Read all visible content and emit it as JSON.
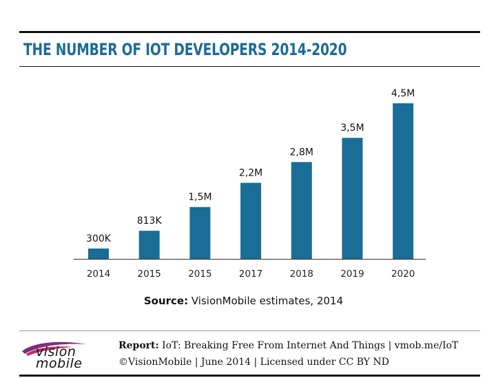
{
  "title": "THE NUMBER OF IOT DEVELOPERS 2014-2020",
  "source": {
    "label": "Source:",
    "text": "VisionMobile estimates, 2014"
  },
  "footer": {
    "report_label": "Report:",
    "report_text": "IoT: Breaking Free From Internet And Things | vmob.me/IoT",
    "copyright": "©VisionMobile | June 2014 | Licensed under CC BY ND",
    "logo_line1": "vision",
    "logo_line2": "mobile"
  },
  "colors": {
    "bar": "#1a6d96",
    "title": "#1c6c96"
  },
  "chart_data": {
    "type": "bar",
    "categories": [
      "2014",
      "2015",
      "2015",
      "2017",
      "2018",
      "2019",
      "2020"
    ],
    "values": [
      0.3,
      0.813,
      1.5,
      2.2,
      2.8,
      3.5,
      4.5
    ],
    "data_labels": [
      "300K",
      "813K",
      "1,5M",
      "2,2M",
      "2,8M",
      "3,5M",
      "4,5M"
    ],
    "ylabel_unit": "millions of developers",
    "ylim": [
      0,
      4.5
    ],
    "grid": false,
    "legend": "none"
  }
}
